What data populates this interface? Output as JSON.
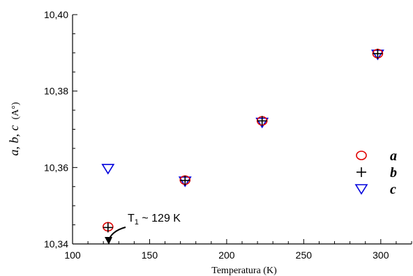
{
  "chart_data": {
    "type": "scatter",
    "xlabel": "Temperatura (K)",
    "ylabel_italic": "a, b, c",
    "ylabel_unit": "(A°)",
    "xlim": [
      100,
      320
    ],
    "ylim": [
      10.34,
      10.4
    ],
    "x_ticks": [
      100,
      150,
      200,
      250,
      300
    ],
    "y_ticks": [
      "10,34",
      "10,36",
      "10,38",
      "10,40"
    ],
    "y_tick_values": [
      10.34,
      10.36,
      10.38,
      10.4
    ],
    "grid": false,
    "legend_position": "right",
    "series": [
      {
        "name": "a",
        "marker": "circle",
        "color": "#e00000",
        "points": [
          {
            "x": 123,
            "y": 10.3445
          },
          {
            "x": 173,
            "y": 10.3567
          },
          {
            "x": 223,
            "y": 10.3722
          },
          {
            "x": 298,
            "y": 10.3898
          }
        ]
      },
      {
        "name": "b",
        "marker": "plus",
        "color": "#000000",
        "points": [
          {
            "x": 123,
            "y": 10.3443
          },
          {
            "x": 173,
            "y": 10.3566
          },
          {
            "x": 223,
            "y": 10.3722
          },
          {
            "x": 298,
            "y": 10.3898
          }
        ]
      },
      {
        "name": "c",
        "marker": "triangle-down",
        "color": "#0000dd",
        "points": [
          {
            "x": 123,
            "y": 10.3597
          },
          {
            "x": 173,
            "y": 10.3564
          },
          {
            "x": 223,
            "y": 10.3718
          },
          {
            "x": 298,
            "y": 10.3896
          }
        ]
      }
    ],
    "annotation": {
      "text_main": "T",
      "text_sub": "1",
      "text_rest": " ~ 129 K"
    }
  }
}
